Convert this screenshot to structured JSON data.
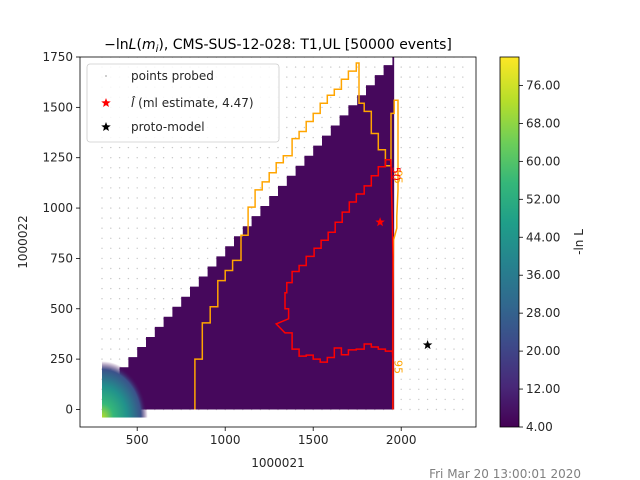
{
  "chart_data": {
    "type": "heatmap",
    "title": "−ln L(m_i), CMS-SUS-12-028: T1,UL [50000 events]",
    "title_parts": [
      "−ln",
      "L",
      "(",
      "m",
      "i",
      "), CMS-SUS-12-028: T1,UL [50000 events]"
    ],
    "xlabel": "1000021",
    "ylabel": "1000022",
    "xlim": [
      175,
      2425
    ],
    "ylim": [
      -87,
      1750
    ],
    "xticks": [
      500,
      1000,
      1500,
      2000
    ],
    "yticks": [
      0,
      250,
      500,
      750,
      1000,
      1250,
      1500,
      1750
    ],
    "colorbar": {
      "label": "-ln L",
      "range": [
        4.0,
        82.0
      ],
      "ticks": [
        "4.00",
        "12.00",
        "20.00",
        "28.00",
        "36.00",
        "44.00",
        "52.00",
        "60.00",
        "68.00",
        "76.00"
      ],
      "colormap": "viridis"
    },
    "heatmap_region": {
      "description": "dense triangle where y < x - 300, x up to 1960",
      "polygon": [
        [
          300,
          0
        ],
        [
          300,
          110
        ],
        [
          1960,
          1760
        ],
        [
          1960,
          0
        ]
      ],
      "background_value": 5.0,
      "hotspot": {
        "x": 300,
        "y": 0,
        "value": 82.0
      }
    },
    "probe_grid": {
      "x_start": 300,
      "x_end": 2350,
      "x_step": 50,
      "y_start": 0,
      "y_end": 1750,
      "y_step": 50
    },
    "contours": [
      {
        "level": "95",
        "color": "#ffa500",
        "points": [
          [
            828,
            0
          ],
          [
            828,
            250
          ],
          [
            870,
            250
          ],
          [
            870,
            430
          ],
          [
            915,
            430
          ],
          [
            915,
            510
          ],
          [
            958,
            510
          ],
          [
            958,
            640
          ],
          [
            1000,
            640
          ],
          [
            1000,
            690
          ],
          [
            1042,
            690
          ],
          [
            1042,
            740
          ],
          [
            1090,
            740
          ],
          [
            1090,
            865
          ],
          [
            1130,
            865
          ],
          [
            1130,
            1005
          ],
          [
            1170,
            1005
          ],
          [
            1170,
            1090
          ],
          [
            1210,
            1090
          ],
          [
            1210,
            1130
          ],
          [
            1250,
            1130
          ],
          [
            1250,
            1175
          ],
          [
            1290,
            1175
          ],
          [
            1290,
            1225
          ],
          [
            1330,
            1225
          ],
          [
            1330,
            1260
          ],
          [
            1380,
            1260
          ],
          [
            1380,
            1345
          ],
          [
            1420,
            1345
          ],
          [
            1420,
            1380
          ],
          [
            1460,
            1380
          ],
          [
            1460,
            1430
          ],
          [
            1500,
            1430
          ],
          [
            1500,
            1470
          ],
          [
            1540,
            1470
          ],
          [
            1540,
            1520
          ],
          [
            1580,
            1520
          ],
          [
            1580,
            1560
          ],
          [
            1620,
            1560
          ],
          [
            1620,
            1590
          ],
          [
            1660,
            1590
          ],
          [
            1660,
            1640
          ],
          [
            1700,
            1640
          ],
          [
            1700,
            1680
          ],
          [
            1745,
            1680
          ],
          [
            1745,
            1720
          ],
          [
            1760,
            1720
          ],
          [
            1760,
            1520
          ],
          [
            1790,
            1520
          ],
          [
            1790,
            1480
          ],
          [
            1830,
            1480
          ],
          [
            1830,
            1370
          ],
          [
            1870,
            1370
          ],
          [
            1870,
            1290
          ],
          [
            1910,
            1290
          ],
          [
            1910,
            1210
          ],
          [
            1942,
            1210
          ],
          [
            1942,
            1470
          ],
          [
            1960,
            1470
          ],
          [
            1960,
            1535
          ],
          [
            1982,
            1535
          ],
          [
            1982,
            1090
          ],
          [
            1975,
            960
          ],
          [
            1975,
            900
          ],
          [
            1956,
            840
          ],
          [
            1953,
            550
          ],
          [
            1953,
            250
          ],
          [
            1953,
            0
          ]
        ],
        "label_points": [
          [
            1963,
            1155
          ],
          [
            1963,
            211
          ]
        ]
      },
      {
        "level": "50",
        "color": "#ff0000",
        "points": [
          [
            1953,
            0
          ],
          [
            1953,
            245
          ],
          [
            1953,
            480
          ],
          [
            1953,
            760
          ],
          [
            1950,
            920
          ],
          [
            1945,
            1095
          ],
          [
            1945,
            1170
          ],
          [
            1940,
            1240
          ],
          [
            1910,
            1240
          ],
          [
            1910,
            1205
          ],
          [
            1870,
            1205
          ],
          [
            1870,
            1160
          ],
          [
            1830,
            1160
          ],
          [
            1830,
            1110
          ],
          [
            1790,
            1110
          ],
          [
            1790,
            1070
          ],
          [
            1745,
            1070
          ],
          [
            1745,
            1030
          ],
          [
            1705,
            1030
          ],
          [
            1705,
            980
          ],
          [
            1665,
            980
          ],
          [
            1665,
            930
          ],
          [
            1625,
            930
          ],
          [
            1625,
            880
          ],
          [
            1585,
            880
          ],
          [
            1585,
            840
          ],
          [
            1545,
            840
          ],
          [
            1545,
            800
          ],
          [
            1505,
            800
          ],
          [
            1505,
            760
          ],
          [
            1460,
            760
          ],
          [
            1460,
            715
          ],
          [
            1420,
            715
          ],
          [
            1420,
            685
          ],
          [
            1380,
            685
          ],
          [
            1380,
            660
          ],
          [
            1380,
            630
          ],
          [
            1350,
            630
          ],
          [
            1350,
            580
          ],
          [
            1340,
            580
          ],
          [
            1340,
            500
          ],
          [
            1360,
            500
          ],
          [
            1360,
            450
          ],
          [
            1290,
            425
          ],
          [
            1290,
            425
          ],
          [
            1340,
            380
          ],
          [
            1380,
            380
          ],
          [
            1380,
            300
          ],
          [
            1420,
            300
          ],
          [
            1420,
            265
          ],
          [
            1460,
            265
          ],
          [
            1460,
            270
          ],
          [
            1500,
            270
          ],
          [
            1500,
            250
          ],
          [
            1540,
            250
          ],
          [
            1540,
            235
          ],
          [
            1580,
            235
          ],
          [
            1580,
            258
          ],
          [
            1620,
            258
          ],
          [
            1620,
            305
          ],
          [
            1660,
            305
          ],
          [
            1660,
            272
          ],
          [
            1700,
            272
          ],
          [
            1700,
            296
          ],
          [
            1745,
            296
          ],
          [
            1745,
            300
          ],
          [
            1790,
            300
          ],
          [
            1790,
            325
          ],
          [
            1830,
            325
          ],
          [
            1830,
            310
          ],
          [
            1870,
            310
          ],
          [
            1870,
            300
          ],
          [
            1910,
            300
          ],
          [
            1910,
            290
          ],
          [
            1950,
            290
          ],
          [
            1953,
            250
          ],
          [
            1953,
            0
          ]
        ],
        "label_points": [
          [
            1950,
            1170
          ]
        ]
      }
    ],
    "contour_labels": [
      "95",
      "50"
    ],
    "markers": {
      "ml_estimate": {
        "x": 1880,
        "y": 930,
        "color": "#ff0000",
        "symbol": "star"
      },
      "proto_model": {
        "x": 2150,
        "y": 320,
        "color": "#000000",
        "symbol": "star"
      }
    },
    "legend": {
      "placement": "top-left",
      "entries": [
        {
          "label": "points probed",
          "marker": "dot",
          "color": "#c0c0c0"
        },
        {
          "label_hat": "l̂",
          "label_suffix": "(ml estimate, 4.47)",
          "marker": "star",
          "color": "#ff0000"
        },
        {
          "label": "proto-model",
          "marker": "star",
          "color": "#000000"
        }
      ]
    },
    "footer": "Fri Mar 20 13:00:01 2020"
  }
}
